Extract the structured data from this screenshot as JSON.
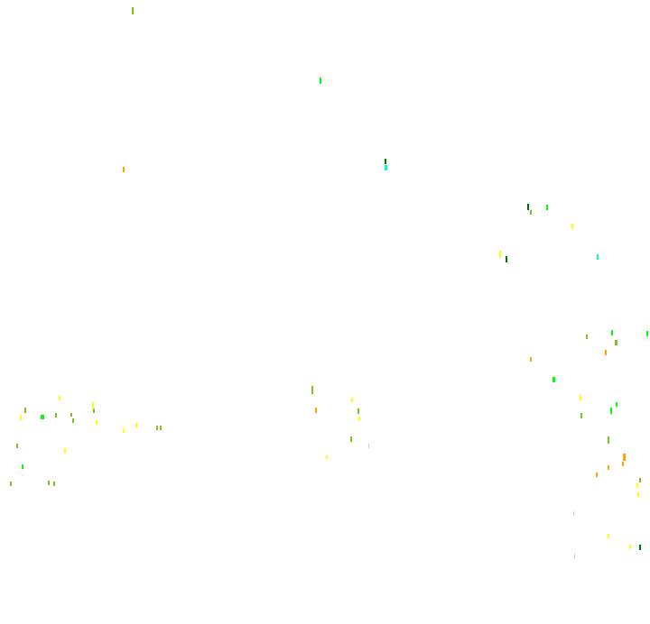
{
  "background": "#ffffff",
  "colors": {
    "yellow": "#ffff00",
    "olive": "#80c020",
    "green": "#00ff00",
    "darkgreen": "#007000",
    "orange": "#ffa500",
    "cyan": "#00ffc0",
    "grey": "#d0d0d0"
  }
}
